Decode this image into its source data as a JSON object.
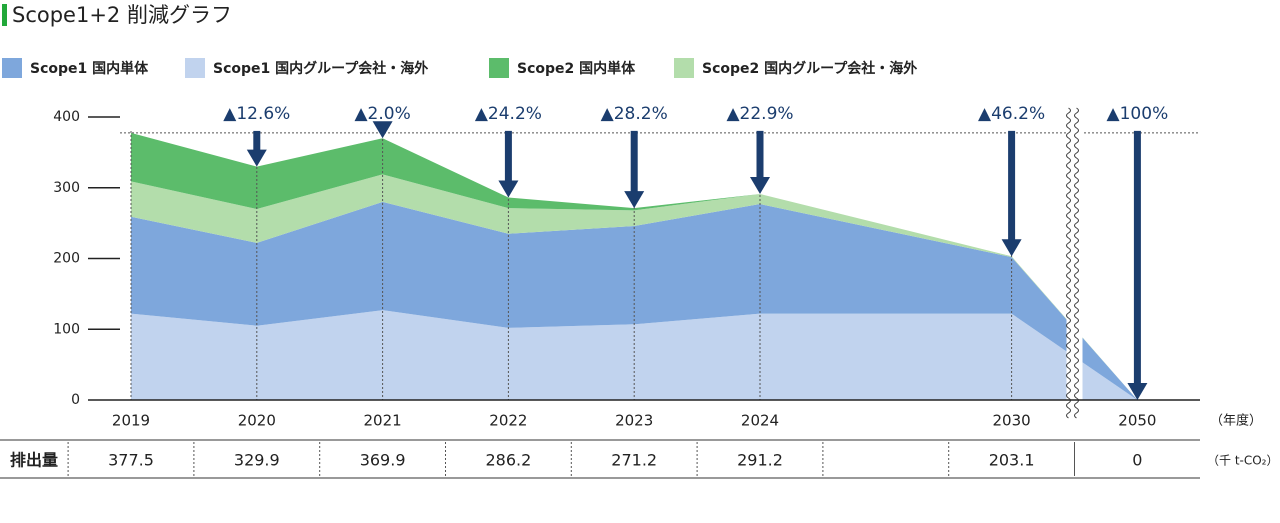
{
  "chart_data": {
    "type": "stacked-area",
    "title": "Scope1+2 削減グラフ",
    "categories": [
      "2019",
      "2020",
      "2021",
      "2022",
      "2023",
      "2024",
      "2030",
      "2050"
    ],
    "series": [
      {
        "name": "Scope1 国内単体",
        "color": "#7ea7dc",
        "values": [
          137,
          117,
          153,
          133,
          139,
          155,
          80,
          0
        ]
      },
      {
        "name": "Scope1 国内グループ会社・海外",
        "color": "#c1d3ee",
        "values": [
          122,
          105,
          127,
          102,
          107,
          122,
          122,
          0
        ]
      },
      {
        "name": "Scope2 国内単体",
        "color": "#5cbc6b",
        "values": [
          68.5,
          60,
          51,
          15,
          3.2,
          0,
          0,
          0
        ]
      },
      {
        "name": "Scope2 国内グループ会社・海外",
        "color": "#b3ddab",
        "values": [
          50,
          47.9,
          38.9,
          36.2,
          22,
          14.2,
          1.1,
          0
        ]
      }
    ],
    "annotations": [
      null,
      "▲12.6%",
      "▲2.0%",
      "▲24.2%",
      "▲28.2%",
      "▲22.9%",
      "▲46.2%",
      "▲100%"
    ],
    "ylim": [
      0,
      400
    ],
    "yticks": [
      0,
      100,
      200,
      300,
      400
    ],
    "x_unit": "（年度）",
    "table_label": "排出量",
    "totals": [
      377.5,
      329.9,
      369.9,
      286.2,
      271.2,
      291.2,
      203.1,
      0
    ],
    "totals_unit": "（千 t-CO₂）"
  }
}
